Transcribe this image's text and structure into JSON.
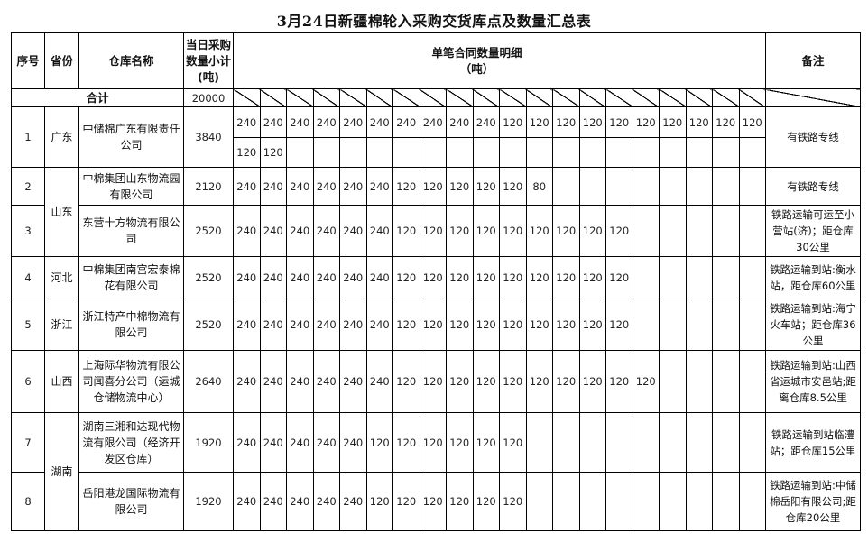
{
  "title": "3月24日新疆棉轮入采购交货库点及数量汇总表",
  "headers": {
    "seq": "序号",
    "province": "省份",
    "warehouse": "仓库名称",
    "subtotal": "当日采购数量小计(吨)",
    "detail": "单笔合同数量明细",
    "detail_unit": "（吨）",
    "remark": "备注"
  },
  "total": {
    "label": "合计",
    "value": "20000"
  },
  "rows": [
    {
      "seq": "1",
      "province": "广东",
      "warehouse": "中储棉广东有限责任公司",
      "subtotal": "3840",
      "details": [
        "240",
        "240",
        "240",
        "240",
        "240",
        "240",
        "240",
        "240",
        "240",
        "240",
        "120",
        "120",
        "120",
        "120",
        "120",
        "120",
        "120",
        "120",
        "120",
        "120"
      ],
      "details2": [
        "120",
        "120"
      ],
      "remark": "有铁路专线"
    },
    {
      "seq": "2",
      "province": "山东",
      "warehouse": "中棉集团山东物流园有限公司",
      "subtotal": "2120",
      "details": [
        "240",
        "240",
        "240",
        "240",
        "240",
        "240",
        "120",
        "120",
        "120",
        "120",
        "120",
        "80"
      ],
      "remark": "有铁路专线"
    },
    {
      "seq": "3",
      "province": "",
      "warehouse": "东营十方物流有限公司",
      "subtotal": "2520",
      "details": [
        "240",
        "240",
        "240",
        "240",
        "240",
        "240",
        "120",
        "120",
        "120",
        "120",
        "120",
        "120",
        "120",
        "120",
        "120"
      ],
      "remark": "铁路运输可运至小营站(济)；距仓库30公里"
    },
    {
      "seq": "4",
      "province": "河北",
      "warehouse": "中棉集团南宫宏泰棉花有限公司",
      "subtotal": "2520",
      "details": [
        "240",
        "240",
        "240",
        "240",
        "240",
        "240",
        "120",
        "120",
        "120",
        "120",
        "120",
        "120",
        "120",
        "120",
        "120"
      ],
      "remark": "铁路运输到站:衡水站，距仓库60公里"
    },
    {
      "seq": "5",
      "province": "浙江",
      "warehouse": "浙江特产中棉物流有限公司",
      "subtotal": "2520",
      "details": [
        "240",
        "240",
        "240",
        "240",
        "240",
        "240",
        "120",
        "120",
        "120",
        "120",
        "120",
        "120",
        "120",
        "120",
        "120"
      ],
      "remark": "铁路运输到站:海宁火车站；距仓库36公里"
    },
    {
      "seq": "6",
      "province": "山西",
      "warehouse": "上海际华物流有限公司闻喜分公司（运城仓储物流中心）",
      "subtotal": "2640",
      "details": [
        "240",
        "240",
        "240",
        "240",
        "240",
        "240",
        "120",
        "120",
        "120",
        "120",
        "120",
        "120",
        "120",
        "120",
        "120",
        "120"
      ],
      "remark": "铁路运输到站:山西省运城市安邑站;距离仓库8.5公里"
    },
    {
      "seq": "7",
      "province": "湖南",
      "warehouse": "湖南三湘和达现代物流有限公司（经济开发区仓库）",
      "subtotal": "1920",
      "details": [
        "240",
        "240",
        "240",
        "240",
        "240",
        "120",
        "120",
        "120",
        "120",
        "120",
        "120"
      ],
      "remark": "铁路运输到站临澧站；距仓库15公里"
    },
    {
      "seq": "8",
      "province": "",
      "warehouse": "岳阳港龙国际物流有限公司",
      "subtotal": "1920",
      "details": [
        "240",
        "240",
        "240",
        "240",
        "240",
        "120",
        "120",
        "120",
        "120",
        "120",
        "120"
      ],
      "remark": "铁路运输到站:中储棉岳阳有限公司;距仓库20公里"
    }
  ]
}
